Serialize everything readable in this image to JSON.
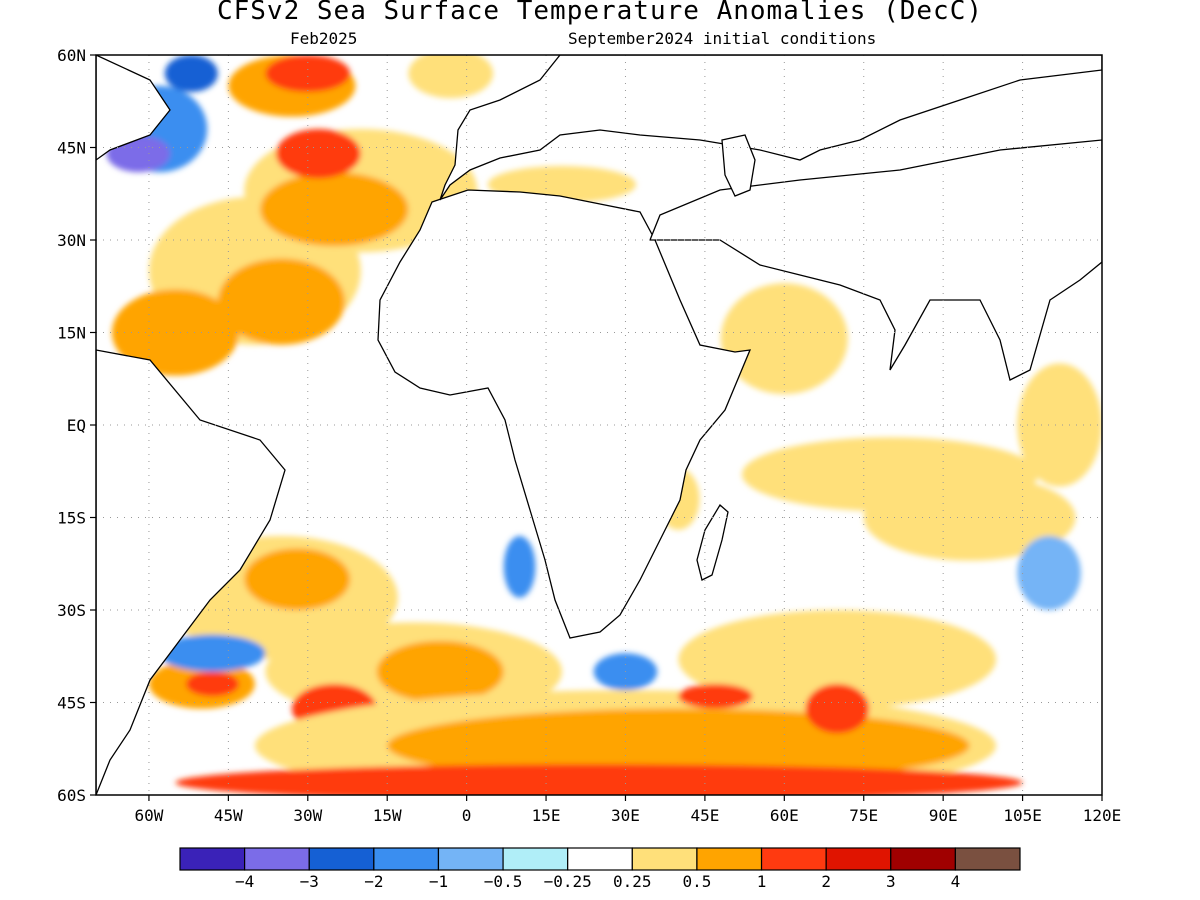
{
  "header": {
    "title": "CFSv2 Sea Surface Temperature Anomalies (DecC)",
    "valid_month": "Feb2025",
    "init_conditions": "September2024 initial conditions"
  },
  "map": {
    "lon_range": [
      -70,
      120
    ],
    "lat_range": [
      -60,
      60
    ],
    "lat_ticks": [
      {
        "value": 60,
        "label": "60N"
      },
      {
        "value": 45,
        "label": "45N"
      },
      {
        "value": 30,
        "label": "30N"
      },
      {
        "value": 15,
        "label": "15N"
      },
      {
        "value": 0,
        "label": "EQ"
      },
      {
        "value": -15,
        "label": "15S"
      },
      {
        "value": -30,
        "label": "30S"
      },
      {
        "value": -45,
        "label": "45S"
      },
      {
        "value": -60,
        "label": "60S"
      }
    ],
    "lon_ticks": [
      {
        "value": -60,
        "label": "60W"
      },
      {
        "value": -45,
        "label": "45W"
      },
      {
        "value": -30,
        "label": "30W"
      },
      {
        "value": -15,
        "label": "15W"
      },
      {
        "value": 0,
        "label": "0"
      },
      {
        "value": 15,
        "label": "15E"
      },
      {
        "value": 30,
        "label": "30E"
      },
      {
        "value": 45,
        "label": "45E"
      },
      {
        "value": 60,
        "label": "60E"
      },
      {
        "value": 75,
        "label": "75E"
      },
      {
        "value": 90,
        "label": "90E"
      },
      {
        "value": 105,
        "label": "105E"
      },
      {
        "value": 120,
        "label": "120E"
      }
    ],
    "gridlines": "dotted"
  },
  "colorbar": {
    "colors": [
      "#3a22b8",
      "#7b6ce8",
      "#1560d4",
      "#3a8ef0",
      "#74b4f6",
      "#b0eef8",
      "#ffffff",
      "#ffe07a",
      "#ffa400",
      "#ff3a10",
      "#e01400",
      "#a00000",
      "#7a5040"
    ],
    "labels": [
      "−4",
      "−3",
      "−2",
      "−1",
      "−0.5",
      "−0.25",
      "0.25",
      "0.5",
      "1",
      "2",
      "3",
      "4"
    ]
  },
  "field": {
    "blobs": [
      {
        "lon": -40,
        "lat": 25,
        "rx": 20,
        "ry": 12,
        "level": 0.5
      },
      {
        "lon": -20,
        "lat": 38,
        "rx": 22,
        "ry": 10,
        "level": 0.5
      },
      {
        "lon": -35,
        "lat": 20,
        "rx": 12,
        "ry": 7,
        "level": 1
      },
      {
        "lon": -25,
        "lat": 35,
        "rx": 14,
        "ry": 6,
        "level": 1
      },
      {
        "lon": -33,
        "lat": 55,
        "rx": 12,
        "ry": 5,
        "level": 1
      },
      {
        "lon": -30,
        "lat": 57,
        "rx": 8,
        "ry": 3,
        "level": 2
      },
      {
        "lon": -28,
        "lat": 44,
        "rx": 8,
        "ry": 4,
        "level": 2
      },
      {
        "lon": -58,
        "lat": 48,
        "rx": 9,
        "ry": 7,
        "level": -1
      },
      {
        "lon": -62,
        "lat": 44,
        "rx": 6,
        "ry": 3,
        "level": -3
      },
      {
        "lon": -52,
        "lat": 57,
        "rx": 5,
        "ry": 3,
        "level": -2
      },
      {
        "lon": -55,
        "lat": 15,
        "rx": 12,
        "ry": 7,
        "level": 1
      },
      {
        "lon": -3,
        "lat": 57,
        "rx": 8,
        "ry": 4,
        "level": 0.5
      },
      {
        "lon": 18,
        "lat": 39,
        "rx": 14,
        "ry": 3,
        "level": 0.5
      },
      {
        "lon": 60,
        "lat": 14,
        "rx": 12,
        "ry": 9,
        "level": 0.5
      },
      {
        "lon": 80,
        "lat": -8,
        "rx": 28,
        "ry": 6,
        "level": 0.5
      },
      {
        "lon": 95,
        "lat": -15,
        "rx": 20,
        "ry": 7,
        "level": 0.5
      },
      {
        "lon": 112,
        "lat": 0,
        "rx": 8,
        "ry": 10,
        "level": 0.5
      },
      {
        "lon": 10,
        "lat": -23,
        "rx": 3,
        "ry": 5,
        "level": -1
      },
      {
        "lon": -35,
        "lat": -28,
        "rx": 22,
        "ry": 10,
        "level": 0.5
      },
      {
        "lon": -32,
        "lat": -25,
        "rx": 10,
        "ry": 5,
        "level": 1
      },
      {
        "lon": -10,
        "lat": -40,
        "rx": 28,
        "ry": 8,
        "level": 0.5
      },
      {
        "lon": -5,
        "lat": -40,
        "rx": 12,
        "ry": 5,
        "level": 1
      },
      {
        "lon": -25,
        "lat": -46,
        "rx": 8,
        "ry": 4,
        "level": 2
      },
      {
        "lon": -50,
        "lat": -42,
        "rx": 10,
        "ry": 4,
        "level": 1
      },
      {
        "lon": -48,
        "lat": -42,
        "rx": 5,
        "ry": 2,
        "level": 2
      },
      {
        "lon": -48,
        "lat": -37,
        "rx": 10,
        "ry": 3,
        "level": -1
      },
      {
        "lon": 30,
        "lat": -40,
        "rx": 6,
        "ry": 3,
        "level": -1
      },
      {
        "lon": 70,
        "lat": -38,
        "rx": 30,
        "ry": 8,
        "level": 0.5
      },
      {
        "lon": 30,
        "lat": -52,
        "rx": 70,
        "ry": 9,
        "level": 0.5
      },
      {
        "lon": 40,
        "lat": -52,
        "rx": 55,
        "ry": 6,
        "level": 1
      },
      {
        "lon": 47,
        "lat": -44,
        "rx": 7,
        "ry": 2,
        "level": 2
      },
      {
        "lon": 70,
        "lat": -46,
        "rx": 6,
        "ry": 4,
        "level": 2
      },
      {
        "lon": 25,
        "lat": -58,
        "rx": 80,
        "ry": 3,
        "level": 2
      },
      {
        "lon": 110,
        "lat": -24,
        "rx": 6,
        "ry": 6,
        "level": -0.5
      },
      {
        "lon": 40,
        "lat": -12,
        "rx": 4,
        "ry": 5,
        "level": 0.5
      }
    ]
  }
}
